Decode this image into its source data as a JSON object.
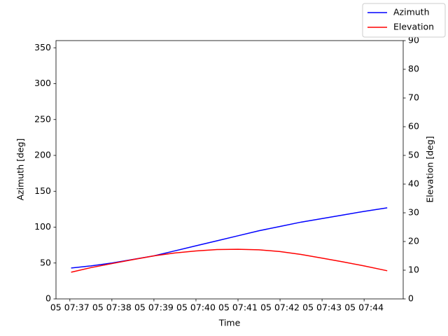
{
  "chart_data": {
    "type": "line",
    "xlabel": "Time",
    "ylabel": "Azimuth [deg]",
    "y2label": "Elevation [deg]",
    "x": [
      37.03,
      37.5,
      38,
      38.5,
      39,
      39.5,
      40,
      40.5,
      41,
      41.5,
      42,
      42.5,
      43,
      43.5,
      44,
      44.55
    ],
    "series": [
      {
        "name": "Azimuth",
        "color": "#0000ff",
        "values": [
          43,
          46,
          50,
          55,
          60,
          67,
          74,
          81,
          88,
          95,
          101,
          107,
          112,
          117,
          122,
          127
        ]
      },
      {
        "name": "Elevation",
        "color": "#ff0000",
        "axis": "y2",
        "values": [
          9.3,
          10.9,
          12.3,
          13.7,
          15.0,
          16.0,
          16.7,
          17.2,
          17.3,
          17.1,
          16.5,
          15.5,
          14.2,
          12.9,
          11.5,
          9.8
        ]
      }
    ],
    "xlim": [
      36.67,
      44.93
    ],
    "xticks": [
      {
        "value": 37,
        "label": "05 07:37"
      },
      {
        "value": 38,
        "label": "05 07:38"
      },
      {
        "value": 39,
        "label": "05 07:39"
      },
      {
        "value": 40,
        "label": "05 07:40"
      },
      {
        "value": 41,
        "label": "05 07:41"
      },
      {
        "value": 42,
        "label": "05 07:42"
      },
      {
        "value": 43,
        "label": "05 07:43"
      },
      {
        "value": 44,
        "label": "05 07:44"
      }
    ],
    "ylim": [
      0,
      360
    ],
    "yticks": [
      0,
      50,
      100,
      150,
      200,
      250,
      300,
      350
    ],
    "y2lim": [
      0,
      90
    ],
    "y2ticks": [
      0,
      10,
      20,
      30,
      40,
      50,
      60,
      70,
      80,
      90
    ],
    "legend": "upper right"
  }
}
